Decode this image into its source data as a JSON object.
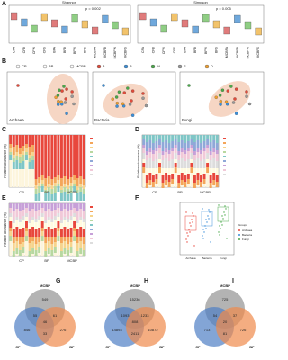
{
  "panels": [
    "A",
    "B",
    "C",
    "D",
    "E",
    "F",
    "G",
    "H",
    "I"
  ],
  "a": {
    "left_title": "Shannon",
    "left_p": "p = 0.002",
    "right_title": "Simpson",
    "right_p": "p = 0.005",
    "categories": [
      "CPA",
      "CPB",
      "CPW",
      "CPS",
      "BPA",
      "BPB",
      "BPW",
      "BPS",
      "MCBPA",
      "MCBPB",
      "MCBPW",
      "MCBPS"
    ]
  },
  "b": {
    "legend": [
      "CP",
      "BP",
      "MCBP",
      "A",
      "B",
      "W",
      "S",
      "D"
    ],
    "titles": [
      "Archaea",
      "Bacteria",
      "Fungi"
    ]
  },
  "c": {
    "y_label": "Relative abundance (%)",
    "groups": [
      "CP",
      "BP",
      "MCBP"
    ]
  },
  "d": {
    "y_label": "Relative abundance (%)",
    "groups": [
      "CP",
      "BP",
      "MCBP"
    ]
  },
  "e": {
    "y_label": "Relative abundance (%)",
    "groups": [
      "CP",
      "BP",
      "MCBP"
    ]
  },
  "f": {
    "groups": [
      "Archaea",
      "Bacteria",
      "Fungi"
    ],
    "legend_title": "Groups"
  },
  "g": {
    "labels": [
      "MCBP",
      "CP",
      "BP"
    ],
    "numbers": [
      "549",
      "846",
      "276",
      "55",
      "61",
      "33",
      "46"
    ]
  },
  "h": {
    "labels": [
      "MCBP",
      "CP",
      "BP"
    ],
    "numbers": [
      "15236",
      "14893",
      "10872",
      "1093",
      "1233",
      "2411",
      "808"
    ]
  },
  "i": {
    "labels": [
      "MCBP",
      "CP",
      "BP"
    ],
    "numbers": [
      "725",
      "713",
      "726",
      "54",
      "37",
      "81",
      "20"
    ]
  }
}
